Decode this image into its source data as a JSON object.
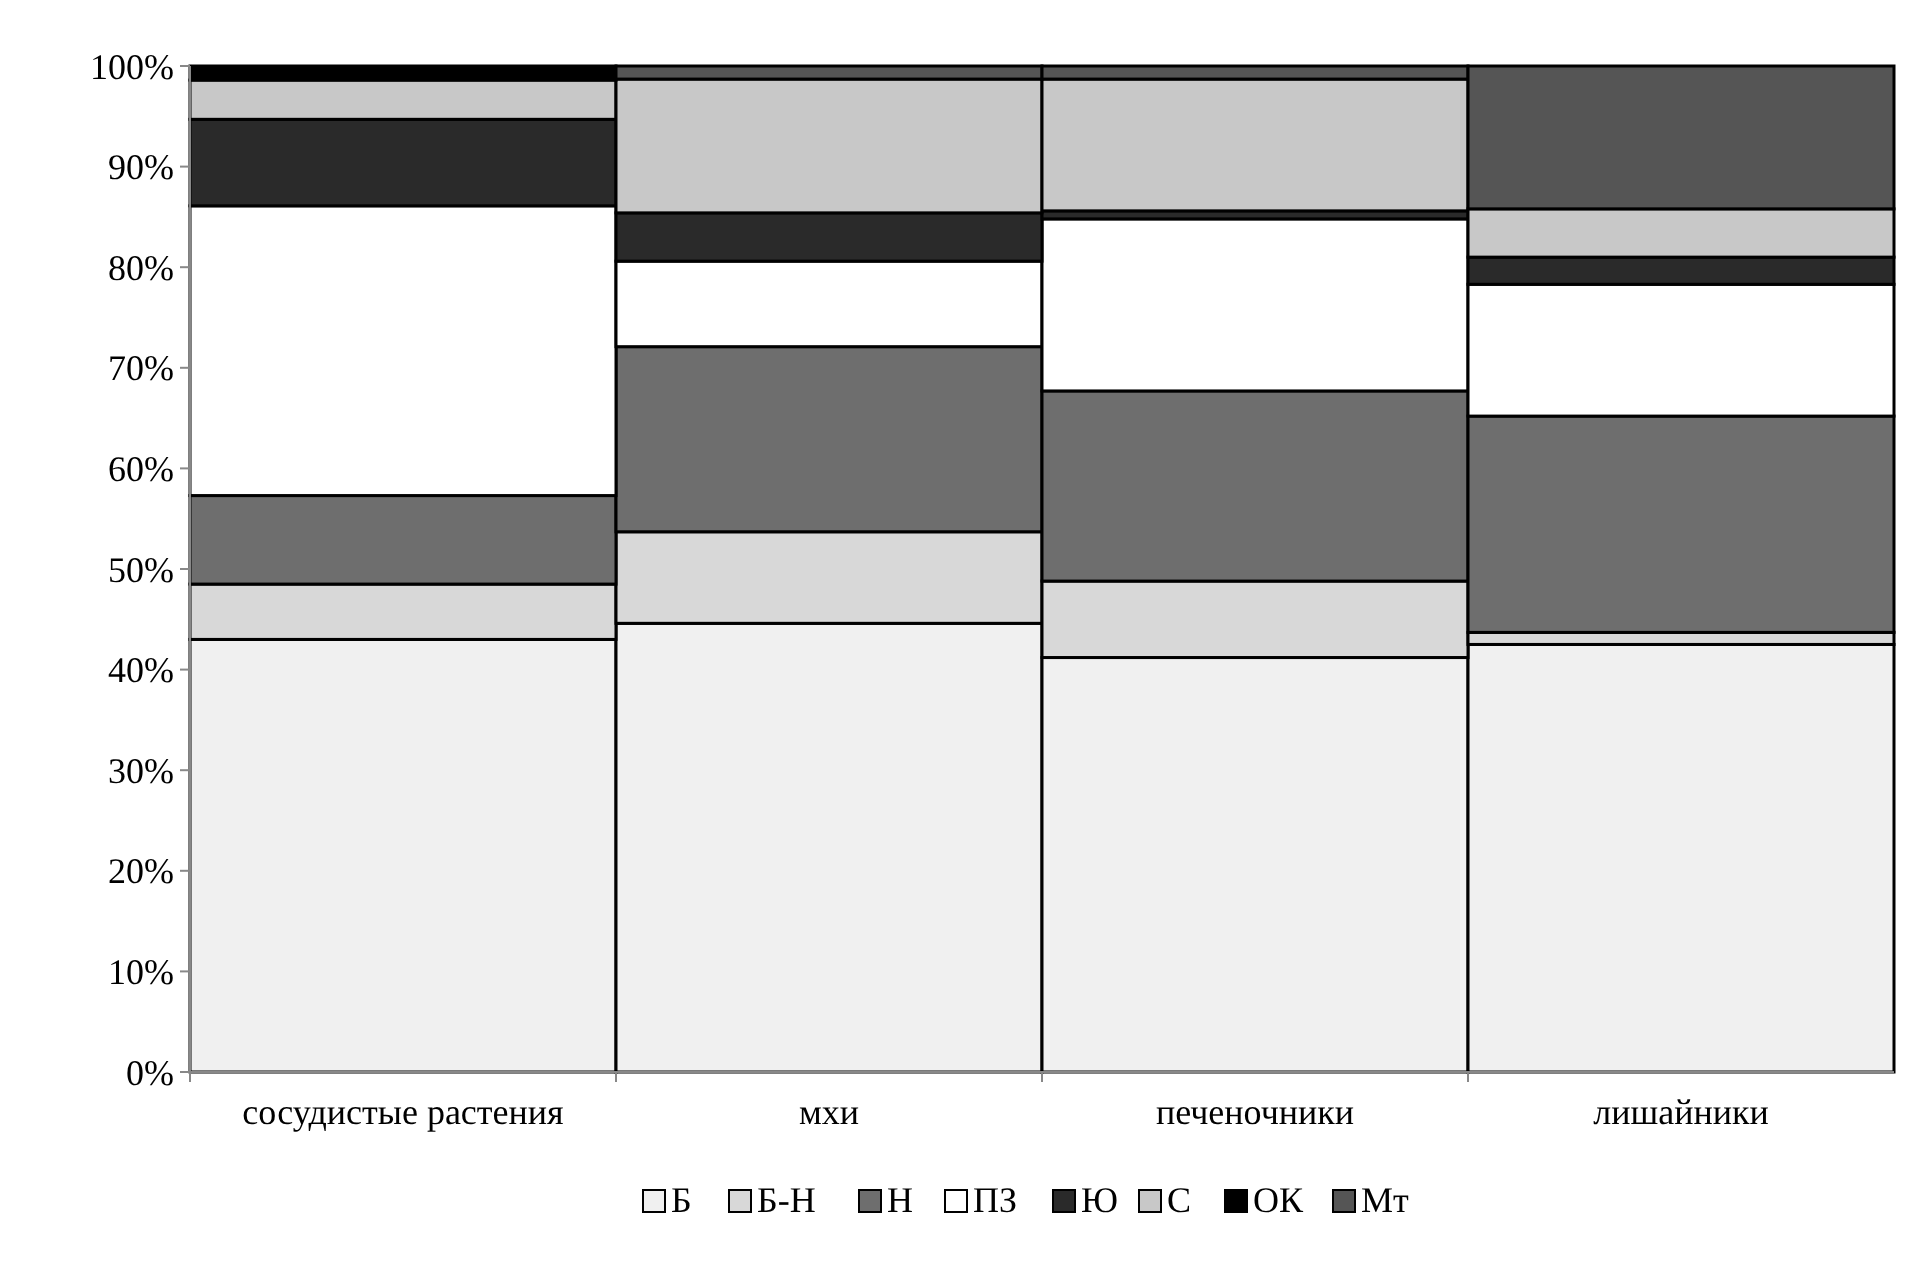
{
  "chart_data": {
    "type": "bar",
    "stacked": true,
    "categories": [
      "сосудистые растения",
      "мхи",
      "печеночники",
      "лишайники"
    ],
    "series": [
      {
        "name": "Б",
        "color": "#f0f0f0",
        "values": [
          43,
          44.6,
          41.2,
          42.5
        ]
      },
      {
        "name": "Б-Н",
        "color": "#d8d8d8",
        "values": [
          5.5,
          9.1,
          7.6,
          1.2
        ]
      },
      {
        "name": "Н",
        "color": "#6e6e6e",
        "values": [
          8.8,
          18.4,
          18.9,
          21.5
        ]
      },
      {
        "name": "ПЗ",
        "color": "#ffffff",
        "values": [
          28.8,
          8.5,
          17.1,
          13.1
        ]
      },
      {
        "name": "Ю",
        "color": "#2a2a2a",
        "values": [
          8.6,
          4.8,
          0.8,
          2.7
        ]
      },
      {
        "name": "С",
        "color": "#c8c8c8",
        "values": [
          3.9,
          13.3,
          13.1,
          4.8
        ]
      },
      {
        "name": "ОК",
        "color": "#000000",
        "values": [
          1.4,
          0,
          0,
          0
        ]
      },
      {
        "name": "Мт",
        "color": "#555555",
        "values": [
          0,
          1.3,
          1.3,
          14.2
        ]
      }
    ],
    "ylim": [
      0,
      100
    ],
    "yticks": [
      {
        "value": 0,
        "label": "0%"
      },
      {
        "value": 10,
        "label": "10%"
      },
      {
        "value": 20,
        "label": "20%"
      },
      {
        "value": 30,
        "label": "30%"
      },
      {
        "value": 40,
        "label": "40%"
      },
      {
        "value": 50,
        "label": "50%"
      },
      {
        "value": 60,
        "label": "60%"
      },
      {
        "value": 70,
        "label": "70%"
      },
      {
        "value": 80,
        "label": "80%"
      },
      {
        "value": 90,
        "label": "90%"
      },
      {
        "value": 100,
        "label": "100%"
      }
    ],
    "legend": "bottom"
  }
}
